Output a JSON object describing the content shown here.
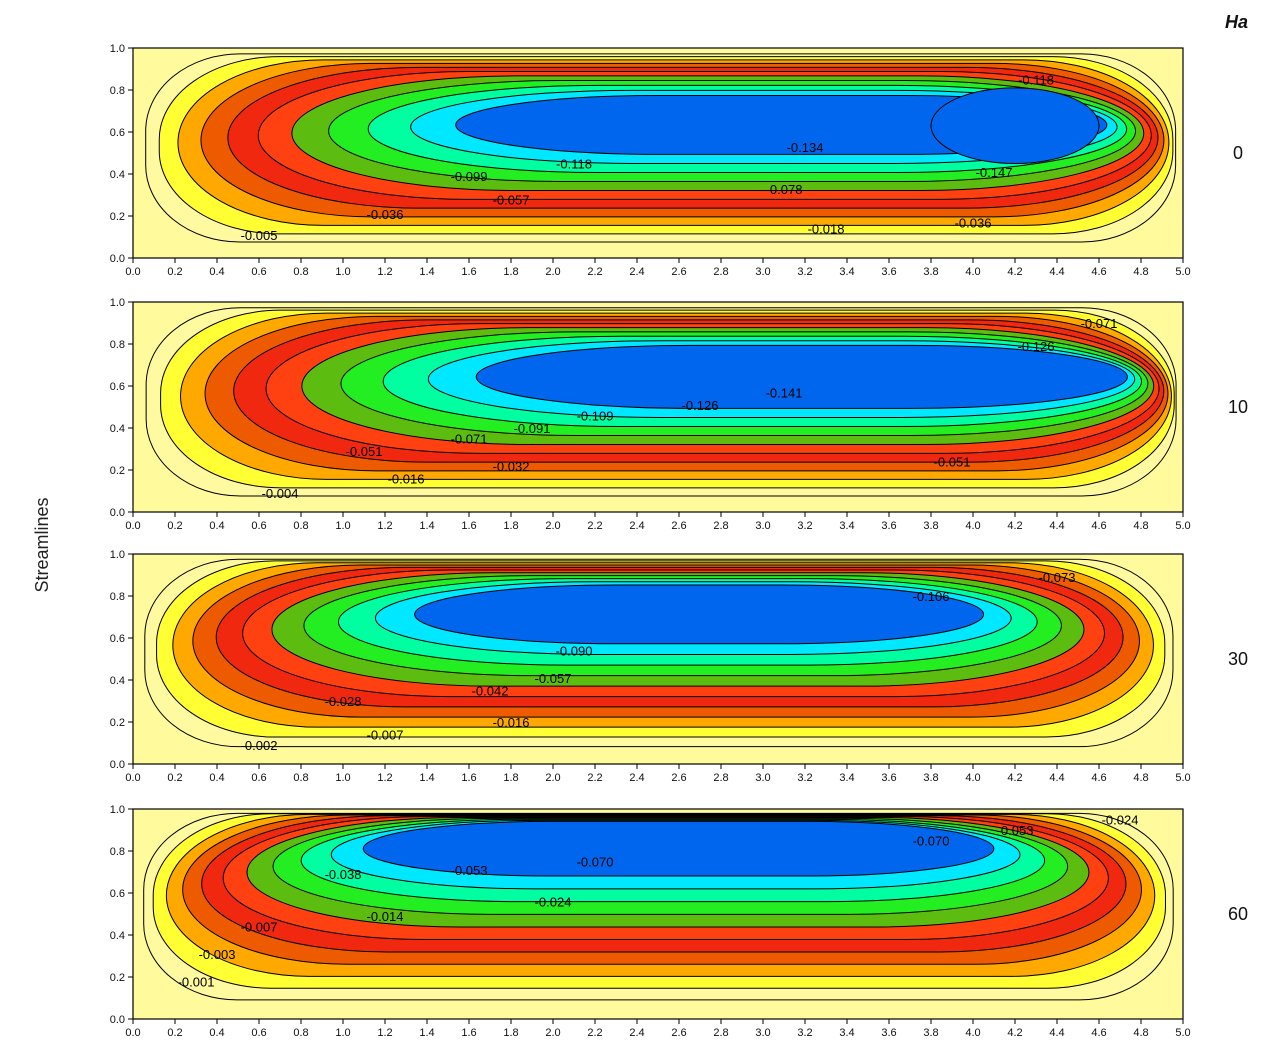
{
  "figure": {
    "side_label": "Streamlines",
    "param_title": "Ha",
    "colors": {
      "levels": [
        "#fff9a0",
        "#ffff33",
        "#ffa800",
        "#ee5a00",
        "#f02810",
        "#ff4010",
        "#5cbd10",
        "#22ee22",
        "#00ffa0",
        "#00e8ff",
        "#0066ee"
      ],
      "background": "#fffb9c",
      "line": "#000000",
      "ink": "#111111"
    }
  },
  "chart_data": [
    {
      "type": "contour",
      "param": "0",
      "xlim": [
        0,
        5
      ],
      "ylim": [
        0,
        1
      ],
      "xticks": [
        "0.0",
        "0.2",
        "0.4",
        "0.6",
        "0.8",
        "1.0",
        "1.2",
        "1.4",
        "1.6",
        "1.8",
        "2.0",
        "2.2",
        "2.4",
        "2.6",
        "2.8",
        "3.0",
        "3.2",
        "3.4",
        "3.6",
        "3.8",
        "4.0",
        "4.2",
        "4.4",
        "4.6",
        "4.8",
        "5.0"
      ],
      "yticks": [
        "0.0",
        "0.2",
        "0.4",
        "0.6",
        "0.8",
        "1.0"
      ],
      "core": {
        "cx": 3.1,
        "cy": 0.65,
        "hx": 1.5,
        "hy": 0.11,
        "bulge_x": 4.2
      },
      "labels": [
        {
          "text": "-0.005",
          "x": 0.6,
          "y": 0.1
        },
        {
          "text": "-0.036",
          "x": 1.2,
          "y": 0.2
        },
        {
          "text": "-0.057",
          "x": 1.8,
          "y": 0.27
        },
        {
          "text": "-0.099",
          "x": 1.6,
          "y": 0.38
        },
        {
          "text": "-0.118",
          "x": 2.1,
          "y": 0.44
        },
        {
          "text": "-0.134",
          "x": 3.2,
          "y": 0.52
        },
        {
          "text": "-0.078",
          "x": 3.1,
          "y": 0.32
        },
        {
          "text": "-0.018",
          "x": 3.3,
          "y": 0.13
        },
        {
          "text": "-0.036",
          "x": 4.0,
          "y": 0.16
        },
        {
          "text": "-0.147",
          "x": 4.1,
          "y": 0.4
        },
        {
          "text": "-0.118",
          "x": 4.3,
          "y": 0.84
        }
      ]
    },
    {
      "type": "contour",
      "param": "10",
      "xlim": [
        0,
        5
      ],
      "ylim": [
        0,
        1
      ],
      "xticks": [
        "0.0",
        "0.2",
        "0.4",
        "0.6",
        "0.8",
        "1.0",
        "1.2",
        "1.4",
        "1.6",
        "1.8",
        "2.0",
        "2.2",
        "2.4",
        "2.6",
        "2.8",
        "3.0",
        "3.2",
        "3.4",
        "3.6",
        "3.8",
        "4.0",
        "4.2",
        "4.4",
        "4.6",
        "4.8",
        "5.0"
      ],
      "yticks": [
        "0.0",
        "0.2",
        "0.4",
        "0.6",
        "0.8",
        "1.0"
      ],
      "core": {
        "cx": 3.2,
        "cy": 0.66,
        "hx": 1.5,
        "hy": 0.12
      },
      "labels": [
        {
          "text": "-0.004",
          "x": 0.7,
          "y": 0.08
        },
        {
          "text": "-0.016",
          "x": 1.3,
          "y": 0.15
        },
        {
          "text": "-0.032",
          "x": 1.8,
          "y": 0.21
        },
        {
          "text": "-0.051",
          "x": 1.1,
          "y": 0.28
        },
        {
          "text": "-0.071",
          "x": 1.6,
          "y": 0.34
        },
        {
          "text": "-0.091",
          "x": 1.9,
          "y": 0.39
        },
        {
          "text": "-0.109",
          "x": 2.2,
          "y": 0.45
        },
        {
          "text": "-0.126",
          "x": 2.7,
          "y": 0.5
        },
        {
          "text": "-0.141",
          "x": 3.1,
          "y": 0.56
        },
        {
          "text": "-0.051",
          "x": 3.9,
          "y": 0.23
        },
        {
          "text": "-0.126",
          "x": 4.3,
          "y": 0.78
        },
        {
          "text": "-0.071",
          "x": 4.6,
          "y": 0.89
        }
      ]
    },
    {
      "type": "contour",
      "param": "30",
      "xlim": [
        0,
        5
      ],
      "ylim": [
        0,
        1
      ],
      "xticks": [
        "0.0",
        "0.2",
        "0.4",
        "0.6",
        "0.8",
        "1.0",
        "1.2",
        "1.4",
        "1.6",
        "1.8",
        "2.0",
        "2.2",
        "2.4",
        "2.6",
        "2.8",
        "3.0",
        "3.2",
        "3.4",
        "3.6",
        "3.8",
        "4.0",
        "4.2",
        "4.4",
        "4.6",
        "4.8",
        "5.0"
      ],
      "yticks": [
        "0.0",
        "0.2",
        "0.4",
        "0.6",
        "0.8",
        "1.0"
      ],
      "core": {
        "cx": 2.7,
        "cy": 0.73,
        "hx": 1.3,
        "hy": 0.11
      },
      "labels": [
        {
          "text": "-0.002",
          "x": 0.6,
          "y": 0.08
        },
        {
          "text": "-0.007",
          "x": 1.2,
          "y": 0.13
        },
        {
          "text": "-0.016",
          "x": 1.8,
          "y": 0.19
        },
        {
          "text": "-0.028",
          "x": 1.0,
          "y": 0.29
        },
        {
          "text": "-0.042",
          "x": 1.7,
          "y": 0.34
        },
        {
          "text": "-0.057",
          "x": 2.0,
          "y": 0.4
        },
        {
          "text": "-0.090",
          "x": 2.1,
          "y": 0.53
        },
        {
          "text": "-0.106",
          "x": 3.8,
          "y": 0.79
        },
        {
          "text": "-0.073",
          "x": 4.4,
          "y": 0.88
        }
      ]
    },
    {
      "type": "contour",
      "param": "60",
      "xlim": [
        0,
        5
      ],
      "ylim": [
        0,
        1
      ],
      "xticks": [
        "0.0",
        "0.2",
        "0.4",
        "0.6",
        "0.8",
        "1.0",
        "1.2",
        "1.4",
        "1.6",
        "1.8",
        "2.0",
        "2.2",
        "2.4",
        "2.6",
        "2.8",
        "3.0",
        "3.2",
        "3.4",
        "3.6",
        "3.8",
        "4.0",
        "4.2",
        "4.4",
        "4.6",
        "4.8",
        "5.0"
      ],
      "yticks": [
        "0.0",
        "0.2",
        "0.4",
        "0.6",
        "0.8",
        "1.0"
      ],
      "core": {
        "cx": 2.6,
        "cy": 0.83,
        "hx": 1.45,
        "hy": 0.1
      },
      "labels": [
        {
          "text": "-0.001",
          "x": 0.3,
          "y": 0.17
        },
        {
          "text": "-0.003",
          "x": 0.4,
          "y": 0.3
        },
        {
          "text": "-0.007",
          "x": 0.6,
          "y": 0.43
        },
        {
          "text": "-0.014",
          "x": 1.2,
          "y": 0.48
        },
        {
          "text": "-0.024",
          "x": 2.0,
          "y": 0.55
        },
        {
          "text": "-0.038",
          "x": 1.0,
          "y": 0.68
        },
        {
          "text": "-0.053",
          "x": 1.6,
          "y": 0.7
        },
        {
          "text": "-0.070",
          "x": 2.2,
          "y": 0.74
        },
        {
          "text": "-0.070",
          "x": 3.8,
          "y": 0.84
        },
        {
          "text": "-0.053",
          "x": 4.2,
          "y": 0.89
        },
        {
          "text": "-0.024",
          "x": 4.7,
          "y": 0.94
        }
      ]
    }
  ]
}
